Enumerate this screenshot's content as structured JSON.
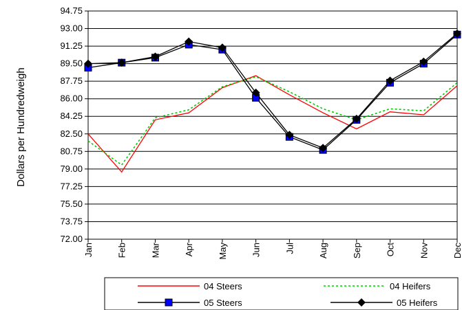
{
  "chart_data": {
    "type": "line",
    "title": "",
    "xlabel": "",
    "ylabel": "Dollars per Hundredweigh",
    "categories": [
      "Jan",
      "Feb",
      "Mar",
      "Apr",
      "May",
      "Jun",
      "Jul",
      "Aug",
      "Sep",
      "Oct",
      "Nov",
      "Dec"
    ],
    "ylim": [
      72.0,
      94.75
    ],
    "yticks": [
      "72.00",
      "73.75",
      "75.50",
      "77.25",
      "79.00",
      "80.75",
      "82.50",
      "84.25",
      "86.00",
      "87.75",
      "89.50",
      "91.25",
      "93.00",
      "94.75"
    ],
    "grid": true,
    "legend_position": "bottom",
    "series": [
      {
        "name": "04 Steers",
        "color": "#ff0000",
        "style": "solid",
        "marker": "none",
        "values": [
          82.5,
          78.7,
          83.9,
          84.6,
          87.1,
          88.3,
          86.4,
          84.6,
          83.0,
          84.7,
          84.4,
          87.3
        ]
      },
      {
        "name": "04 Heifers",
        "color": "#00cc00",
        "style": "dotted",
        "marker": "none",
        "values": [
          81.8,
          79.4,
          84.1,
          84.9,
          87.2,
          88.2,
          86.7,
          85.0,
          83.9,
          85.0,
          84.8,
          87.6
        ]
      },
      {
        "name": "05 Steers",
        "color": "#0000ff",
        "style": "solid",
        "marker": "square",
        "values": [
          89.1,
          89.6,
          90.1,
          91.4,
          90.9,
          86.1,
          82.2,
          80.9,
          83.9,
          87.6,
          89.5,
          92.4
        ]
      },
      {
        "name": "05 Heifers",
        "color": "#000000",
        "style": "solid",
        "marker": "diamond",
        "values": [
          89.5,
          89.6,
          90.2,
          91.7,
          91.1,
          86.6,
          82.4,
          81.1,
          84.0,
          87.8,
          89.7,
          92.5
        ]
      }
    ]
  }
}
